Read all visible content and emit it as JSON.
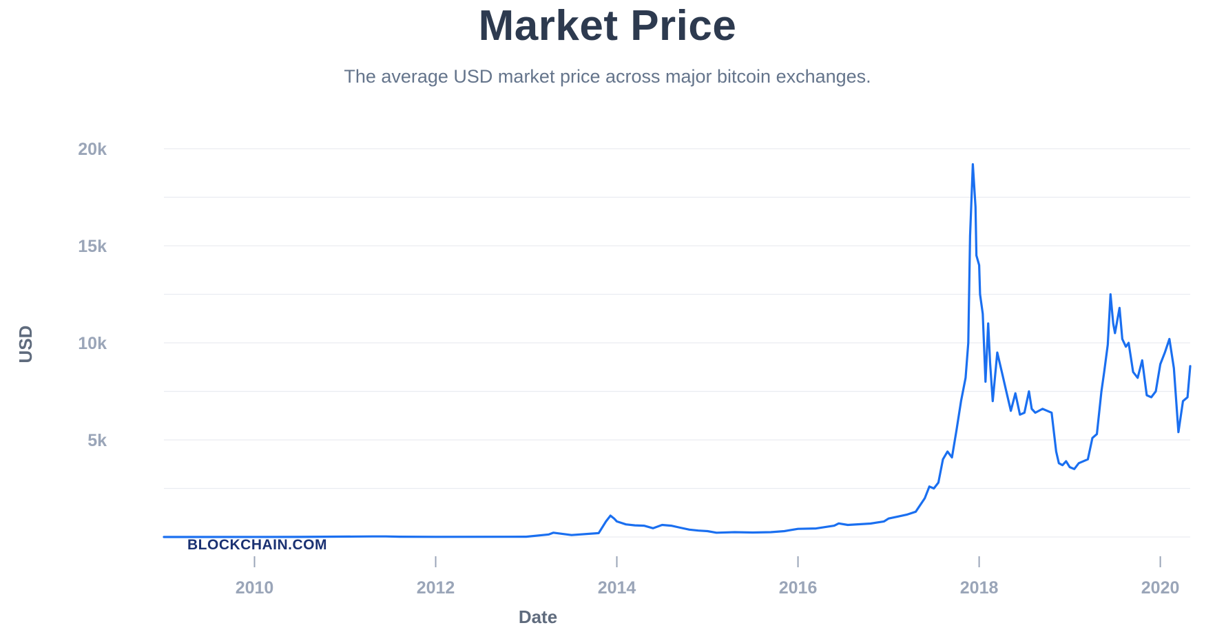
{
  "title": "Market Price",
  "subtitle": "The average USD market price across major bitcoin exchanges.",
  "brand": "BLOCKCHAIN.COM",
  "colors": {
    "line": "#1a6ff0",
    "grid": "#e9ecf1",
    "title": "#2d3a4f"
  },
  "chart_data": {
    "type": "line",
    "xlabel": "Date",
    "ylabel": "USD",
    "xlim": [
      2009.0,
      2020.33
    ],
    "ylim": [
      0,
      20000
    ],
    "grid": true,
    "x_ticks": [
      {
        "value": 2010,
        "label": "2010"
      },
      {
        "value": 2012,
        "label": "2012"
      },
      {
        "value": 2014,
        "label": "2014"
      },
      {
        "value": 2016,
        "label": "2016"
      },
      {
        "value": 2018,
        "label": "2018"
      },
      {
        "value": 2020,
        "label": "2020"
      }
    ],
    "y_ticks": [
      {
        "value": 5000,
        "label": "5k"
      },
      {
        "value": 10000,
        "label": "10k"
      },
      {
        "value": 15000,
        "label": "15k"
      },
      {
        "value": 20000,
        "label": "20k"
      }
    ],
    "series": [
      {
        "x": [
          2009.0,
          2010.5,
          2011.3,
          2011.45,
          2011.6,
          2012.0,
          2012.8,
          2013.0,
          2013.25,
          2013.3,
          2013.5,
          2013.8,
          2013.88,
          2013.93,
          2013.97,
          2014.0,
          2014.1,
          2014.2,
          2014.3,
          2014.4,
          2014.5,
          2014.6,
          2014.7,
          2014.8,
          2014.9,
          2015.0,
          2015.1,
          2015.3,
          2015.5,
          2015.7,
          2015.85,
          2016.0,
          2016.2,
          2016.4,
          2016.45,
          2016.55,
          2016.8,
          2016.95,
          2017.0,
          2017.1,
          2017.2,
          2017.3,
          2017.4,
          2017.45,
          2017.5,
          2017.55,
          2017.6,
          2017.65,
          2017.7,
          2017.75,
          2017.8,
          2017.85,
          2017.88,
          2017.9,
          2017.93,
          2017.96,
          2017.97,
          2018.0,
          2018.01,
          2018.04,
          2018.07,
          2018.1,
          2018.12,
          2018.15,
          2018.2,
          2018.25,
          2018.3,
          2018.35,
          2018.4,
          2018.45,
          2018.5,
          2018.55,
          2018.58,
          2018.62,
          2018.7,
          2018.75,
          2018.8,
          2018.85,
          2018.88,
          2018.92,
          2018.96,
          2019.0,
          2019.05,
          2019.1,
          2019.2,
          2019.25,
          2019.3,
          2019.35,
          2019.38,
          2019.42,
          2019.45,
          2019.48,
          2019.5,
          2019.55,
          2019.58,
          2019.62,
          2019.65,
          2019.7,
          2019.75,
          2019.8,
          2019.85,
          2019.9,
          2019.95,
          2020.0,
          2020.05,
          2020.1,
          2020.15,
          2020.2,
          2020.25,
          2020.3,
          2020.33
        ],
        "y": [
          0,
          5,
          30,
          30,
          15,
          8,
          12,
          15,
          130,
          220,
          100,
          200,
          800,
          1100,
          950,
          800,
          650,
          600,
          580,
          450,
          620,
          580,
          480,
          380,
          330,
          300,
          220,
          250,
          230,
          250,
          300,
          420,
          440,
          580,
          700,
          620,
          690,
          800,
          950,
          1050,
          1150,
          1300,
          2000,
          2600,
          2500,
          2800,
          4000,
          4400,
          4100,
          5500,
          7000,
          8200,
          10000,
          15500,
          19200,
          17000,
          14500,
          14000,
          12500,
          11500,
          8000,
          11000,
          9000,
          7000,
          9500,
          8500,
          7500,
          6500,
          7400,
          6300,
          6400,
          7500,
          6600,
          6400,
          6600,
          6500,
          6400,
          4400,
          3800,
          3700,
          3900,
          3600,
          3500,
          3800,
          4000,
          5100,
          5300,
          7500,
          8500,
          9900,
          12500,
          11000,
          10500,
          11800,
          10200,
          9800,
          10000,
          8500,
          8200,
          9100,
          7300,
          7200,
          7500,
          8900,
          9500,
          10200,
          8700,
          5400,
          7000,
          7200,
          8800
        ]
      }
    ]
  }
}
